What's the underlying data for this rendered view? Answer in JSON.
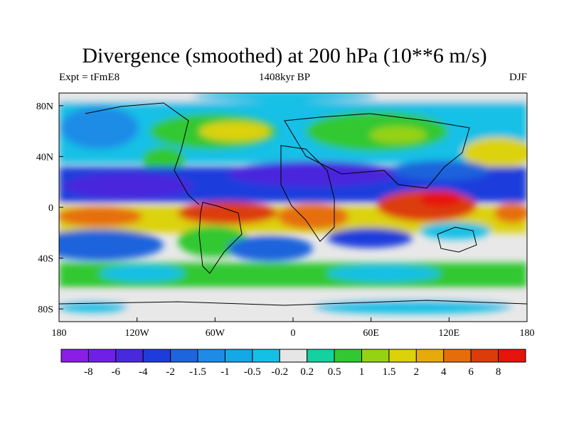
{
  "chart_data": {
    "type": "heatmap",
    "title": "Divergence (smoothed) at 200 hPa (10**6 m/s)",
    "subtitle_left": "Expt = tFmE8",
    "subtitle_center": "1408kyr BP",
    "subtitle_right": "DJF",
    "x_ticks": [
      "180",
      "120W",
      "60W",
      "0",
      "60E",
      "120E",
      "180"
    ],
    "y_ticks": [
      "80N",
      "40N",
      "0",
      "40S",
      "80S"
    ],
    "x_range": [
      -180,
      180
    ],
    "y_range": [
      -90,
      90
    ],
    "colorbar": {
      "labels": [
        "-8",
        "-6",
        "-4",
        "-2",
        "-1.5",
        "-1",
        "-0.5",
        "-0.2",
        "0.2",
        "0.5",
        "1",
        "1.5",
        "2",
        "4",
        "6",
        "8"
      ],
      "colors": [
        "#8a1ee6",
        "#7020e6",
        "#4a28dc",
        "#1e3cdc",
        "#1e64dc",
        "#1e8ce6",
        "#14a8e6",
        "#14c0e6",
        "#e6e6e6",
        "#14d2a0",
        "#32c832",
        "#96d214",
        "#dcd20a",
        "#e6aa0a",
        "#e66e0a",
        "#dc3c0a",
        "#e6140a"
      ]
    }
  }
}
